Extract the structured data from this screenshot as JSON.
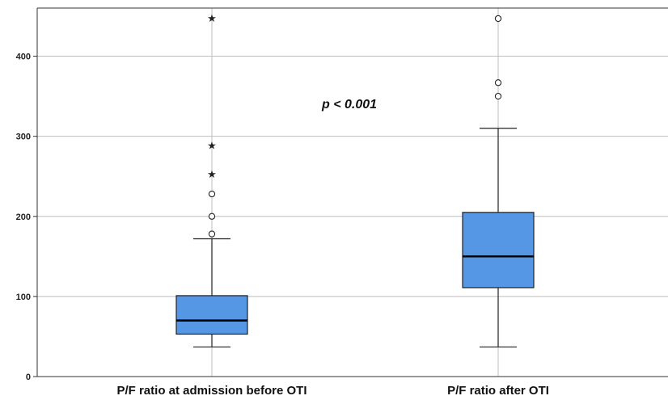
{
  "chart_data": {
    "type": "boxplot",
    "title": "",
    "xlabel": "",
    "ylabel": "",
    "ylim": [
      0,
      450
    ],
    "yticks": [
      0,
      100,
      200,
      300,
      400
    ],
    "grid": true,
    "colors": {
      "box": "#5597e5",
      "stroke": "#222222",
      "grid": "#bdbdbd"
    },
    "annotation": {
      "text": "p < 0.001",
      "x": 0.5,
      "y": 340
    },
    "categories": [
      "P/F ratio at admission before OTI",
      "P/F ratio after OTI"
    ],
    "boxes": [
      {
        "whisker_low": 37,
        "q1": 53,
        "median": 70,
        "q3": 101,
        "whisker_high": 172,
        "outliers": [
          178,
          200,
          228
        ],
        "extremes": [
          252,
          288,
          447
        ]
      },
      {
        "whisker_low": 37,
        "q1": 111,
        "median": 150,
        "q3": 205,
        "whisker_high": 310,
        "outliers": [
          350,
          367,
          447
        ],
        "extremes": []
      }
    ]
  }
}
